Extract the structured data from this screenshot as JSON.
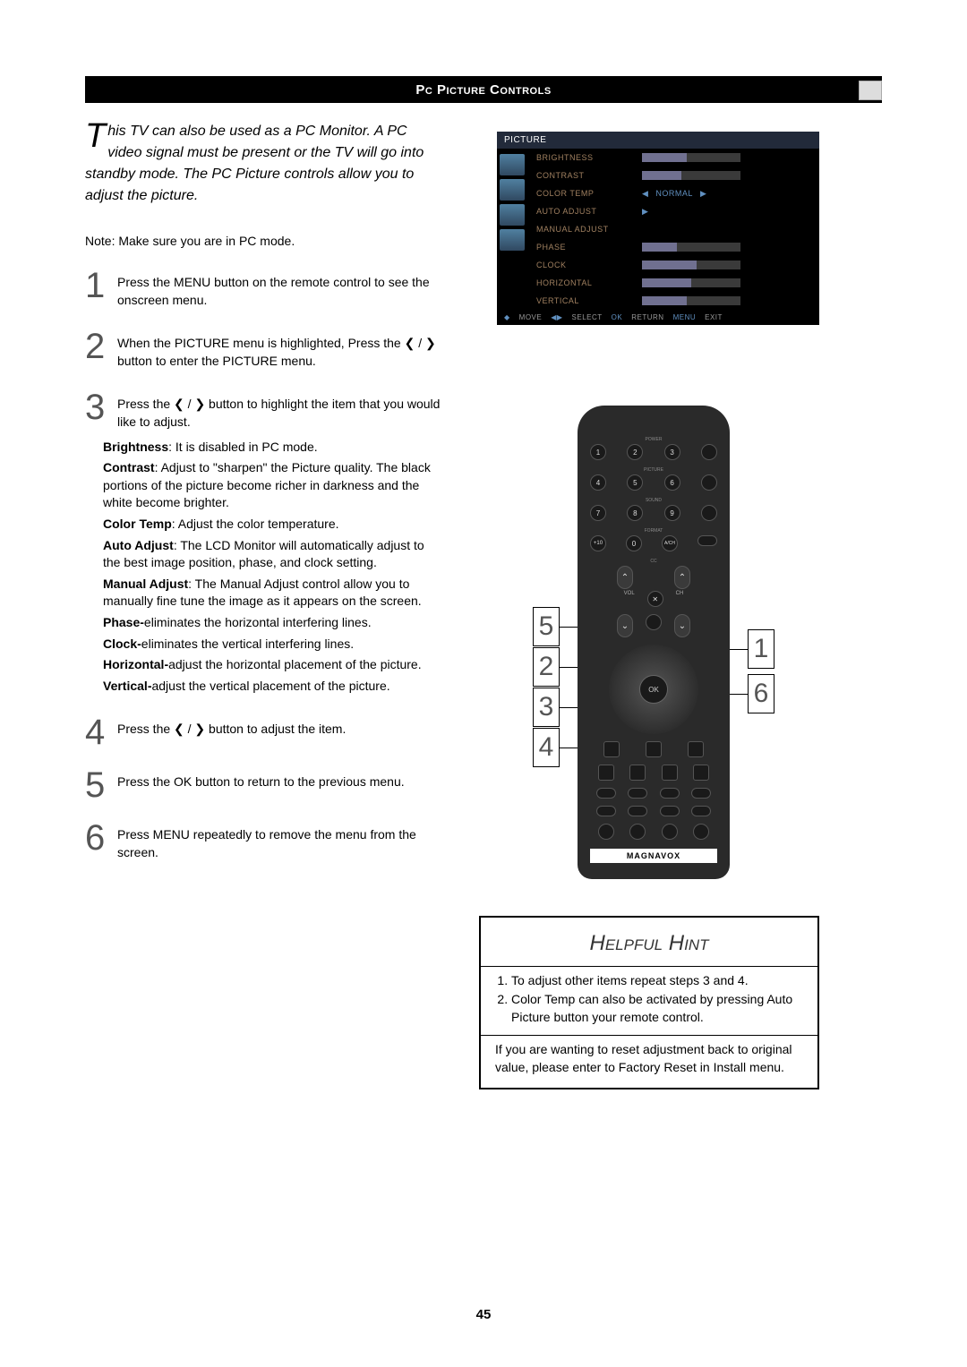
{
  "header": {
    "title": "Pc Picture Controls"
  },
  "intro": "This TV can also be used as a PC Monitor. A PC video signal must be present or the TV will go into standby mode. The PC Picture controls allow you to adjust the picture.",
  "note": "Note: Make sure you are in PC mode.",
  "steps": [
    {
      "n": "1",
      "body": "Press the MENU button on the remote control to see the onscreen menu."
    },
    {
      "n": "2",
      "body": "When the PICTURE menu is highlighted, Press the ❮ / ❯ button to enter the PICTURE menu."
    },
    {
      "n": "3",
      "body": "Press the ❮ / ❯ button to highlight the item that you would like to adjust.",
      "arrows_updown": true
    },
    {
      "n": "4",
      "body": "Press the ❮ / ❯ button to adjust the item."
    },
    {
      "n": "5",
      "body": "Press the OK button to return to the previous menu."
    },
    {
      "n": "6",
      "body": "Press MENU repeatedly to remove the menu from the screen."
    }
  ],
  "definitions": [
    {
      "term": "Brightness",
      "desc": ": It is disabled in PC mode."
    },
    {
      "term": "Contrast",
      "desc": ": Adjust to \"sharpen\" the Picture quality. The black portions of the picture become richer in darkness and the white become brighter."
    },
    {
      "term": "Color Temp",
      "desc": ": Adjust the color temperature."
    },
    {
      "term": "Auto Adjust",
      "desc": ": The LCD Monitor will automatically adjust to the best image position, phase, and clock setting."
    },
    {
      "term": "Manual Adjust",
      "desc": ": The Manual Adjust control allow you to manually fine tune the image as it appears on the screen."
    },
    {
      "term": "Phase-",
      "desc": "eliminates the horizontal interfering lines."
    },
    {
      "term": "Clock-",
      "desc": "eliminates the vertical interfering lines."
    },
    {
      "term": "Horizontal-",
      "desc": "adjust the horizontal placement of the picture."
    },
    {
      "term": "Vertical-",
      "desc": "adjust the vertical placement of the picture."
    }
  ],
  "osd": {
    "title": "PICTURE",
    "rows": [
      {
        "label": "BRIGHTNESS",
        "slider": 45
      },
      {
        "label": "CONTRAST",
        "slider": 40
      },
      {
        "label": "COLOR TEMP",
        "value": "NORMAL",
        "arrows": true
      },
      {
        "label": "AUTO ADJUST",
        "play": true
      },
      {
        "label": "MANUAL ADJUST"
      },
      {
        "label": "PHASE",
        "slider": 35
      },
      {
        "label": "CLOCK",
        "slider": 55
      },
      {
        "label": "HORIZONTAL",
        "slider": 50
      },
      {
        "label": "VERTICAL",
        "slider": 45
      }
    ],
    "footer": [
      {
        "icon": "◆",
        "text": "MOVE"
      },
      {
        "icon": "◀▶",
        "text": "SELECT"
      },
      {
        "icon": "OK",
        "text": "RETURN"
      },
      {
        "icon": "MENU",
        "text": "EXIT"
      }
    ],
    "colors": {
      "bg": "#000000",
      "title_bg": "#222a3a",
      "label": "#a08060",
      "value": "#6090c0",
      "slider_bg": "#3a3a3a",
      "slider_fill": "#707090"
    }
  },
  "remote": {
    "brand": "MAGNAVOX",
    "numpad": [
      "1",
      "2",
      "3",
      "4",
      "5",
      "6",
      "7",
      "8",
      "9",
      "+10",
      "0",
      "A/CH"
    ],
    "ok": "OK",
    "callouts_left": [
      "5",
      "2",
      "3",
      "4"
    ],
    "callouts_right": [
      "1",
      "6"
    ]
  },
  "hint": {
    "title": "Helpful Hint",
    "items": [
      "To adjust other items repeat steps 3 and 4.",
      "Color Temp can also be activated by pressing Auto Picture button your remote control."
    ],
    "footer": "If you are wanting to reset adjustment back to original value, please enter to Factory Reset in Install menu."
  },
  "page_number": "45"
}
